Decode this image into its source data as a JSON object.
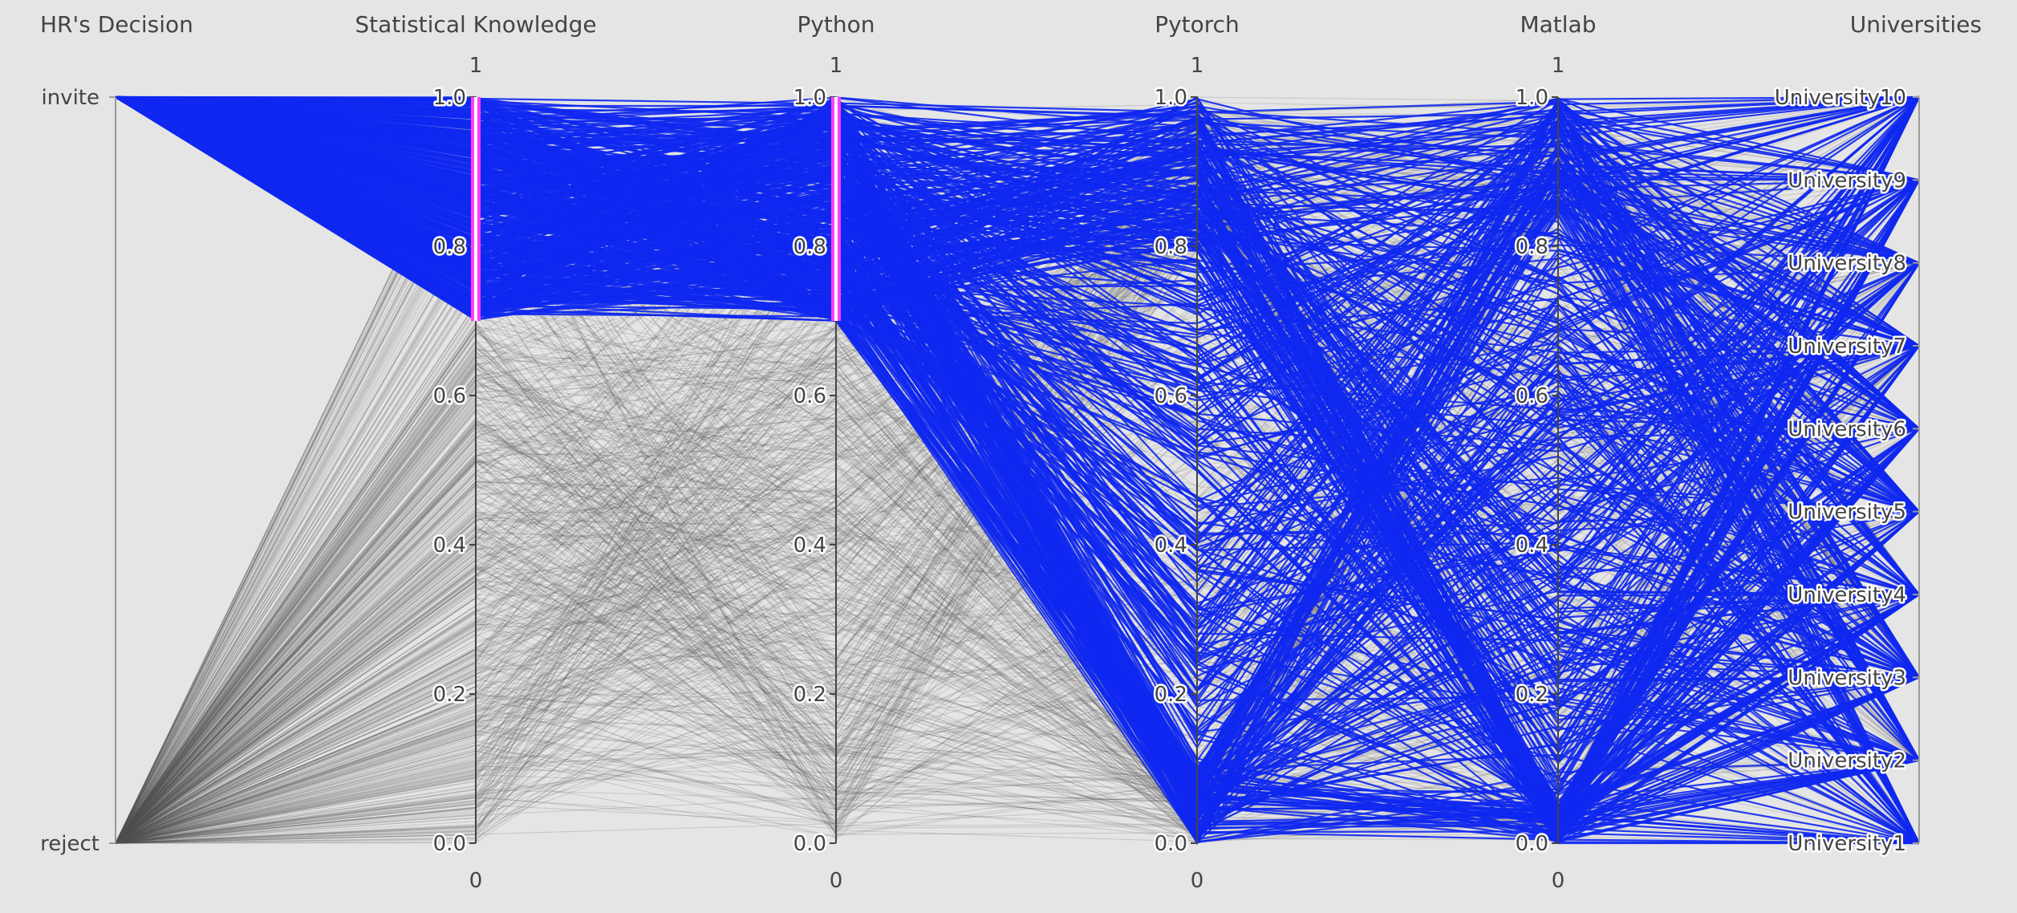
{
  "chart_data": {
    "type": "parallel_coordinates",
    "highlight_color": "#0f28f0",
    "base_color": "#555555",
    "brush_color": "#ff3cff",
    "background": "#e5e5e5",
    "axes": [
      {
        "title": "HR's Decision",
        "kind": "categorical",
        "categories": [
          "reject",
          "invite"
        ],
        "category_values": [
          0,
          1
        ]
      },
      {
        "title": "Statistical Knowledge",
        "kind": "numeric",
        "range": [
          0,
          1
        ],
        "range_min_label": "0",
        "range_max_label": "1",
        "ticks": [
          "0.0",
          "0.2",
          "0.4",
          "0.6",
          "0.8",
          "1.0"
        ],
        "brush": [
          0.7,
          1.0
        ]
      },
      {
        "title": "Python",
        "kind": "numeric",
        "range": [
          0,
          1
        ],
        "range_min_label": "0",
        "range_max_label": "1",
        "ticks": [
          "0.0",
          "0.2",
          "0.4",
          "0.6",
          "0.8",
          "1.0"
        ],
        "brush": [
          0.7,
          1.0
        ]
      },
      {
        "title": "Pytorch",
        "kind": "numeric",
        "range": [
          0,
          1
        ],
        "range_min_label": "0",
        "range_max_label": "1",
        "ticks": [
          "0.0",
          "0.2",
          "0.4",
          "0.6",
          "0.8",
          "1.0"
        ]
      },
      {
        "title": "Matlab",
        "kind": "numeric",
        "range": [
          0,
          1
        ],
        "range_min_label": "0",
        "range_max_label": "1",
        "ticks": [
          "0.0",
          "0.2",
          "0.4",
          "0.6",
          "0.8",
          "1.0"
        ]
      },
      {
        "title": "Universities",
        "kind": "categorical",
        "categories": [
          "University1",
          "University2",
          "University3",
          "University4",
          "University5",
          "University6",
          "University7",
          "University8",
          "University9",
          "University10"
        ],
        "category_values": [
          1,
          2,
          3,
          4,
          5,
          6,
          7,
          8,
          9,
          10
        ]
      }
    ],
    "selection_rule": "invite AND Statistical Knowledge in [0.7, 1.0] AND Python in [0.7, 1.0]",
    "approx_line_count": 1200
  }
}
